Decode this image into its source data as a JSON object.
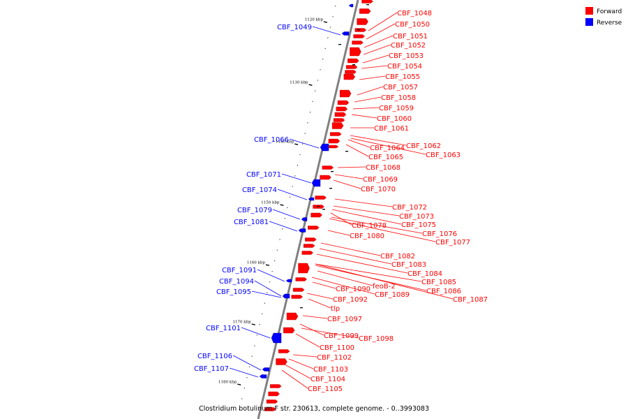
{
  "title": "Clostridium botulinum F str. 230613, complete genome. - 0..3993083",
  "legend": [
    {
      "label": "Forward",
      "color": "#ff0000"
    },
    {
      "label": "Reverse",
      "color": "#0000ff"
    }
  ],
  "colors": {
    "forward": "#ff0000",
    "reverse": "#0000ff",
    "backbone": "#808080"
  },
  "ticks": [
    "1120 kbp",
    "1130 kbp",
    "1140 kbp",
    "1150 kbp",
    "1160 kbp",
    "1170 kbp",
    "1180 kbp"
  ],
  "forward_genes": [
    "CBF_1048",
    "CBF_1050",
    "CBF_1051",
    "CBF_1052",
    "CBF_1053",
    "CBF_1054",
    "CBF_1055",
    "CBF_1057",
    "CBF_1058",
    "CBF_1059",
    "CBF_1060",
    "CBF_1061",
    "CBF_1062",
    "CBF_1064",
    "CBF_1063",
    "CBF_1065",
    "CBF_1068",
    "CBF_1069",
    "CBF_1070",
    "CBF_1072",
    "CBF_1073",
    "CBF_1075",
    "CBF_1078",
    "CBF_1076",
    "CBF_1080",
    "CBF_1077",
    "CBF_1082",
    "CBF_1083",
    "CBF_1084",
    "CBF_1085",
    "feoB-2",
    "CBF_1086",
    "CBF_1090",
    "CBF_1089",
    "CBF_1087",
    "CBF_1092",
    "tlp",
    "CBF_1097",
    "CBF_1099",
    "CBF_1098",
    "CBF_1100",
    "CBF_1102",
    "CBF_1103",
    "CBF_1104",
    "CBF_1105"
  ],
  "reverse_genes": [
    "CBF_1049",
    "CBF_1066",
    "CBF_1071",
    "CBF_1074",
    "CBF_1079",
    "CBF_1081",
    "CBF_1091",
    "CBF_1094",
    "CBF_1095",
    "CBF_1101",
    "CBF_1106",
    "CBF_1107"
  ]
}
